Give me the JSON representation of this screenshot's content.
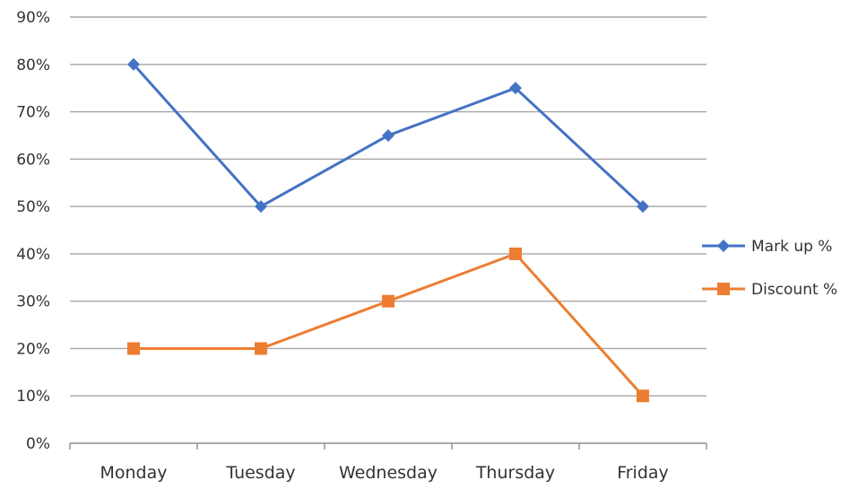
{
  "chart_data": {
    "type": "line",
    "categories": [
      "Monday",
      "Tuesday",
      "Wednesday",
      "Thursday",
      "Friday"
    ],
    "series": [
      {
        "name": "Mark up %",
        "values": [
          80,
          50,
          65,
          75,
          50
        ],
        "color": "#4472C4",
        "marker": "diamond"
      },
      {
        "name": "Discount %",
        "values": [
          20,
          20,
          30,
          40,
          10
        ],
        "color": "#ED7D31",
        "marker": "square"
      }
    ],
    "ylim": [
      0,
      90
    ],
    "y_ticks": [
      "0%",
      "10%",
      "20%",
      "30%",
      "40%",
      "50%",
      "60%",
      "70%",
      "80%",
      "90%"
    ],
    "grid": true,
    "legend_position": "right"
  }
}
